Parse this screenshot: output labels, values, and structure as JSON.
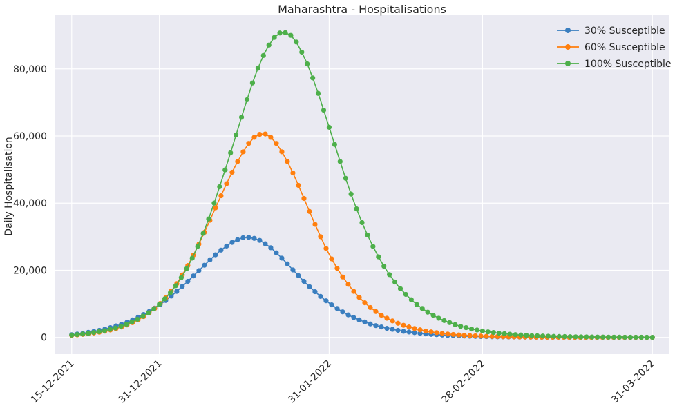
{
  "chart_data": {
    "type": "line",
    "title": "Maharashtra - Hospitalisations",
    "xlabel": "",
    "ylabel": "Daily Hospitalisation",
    "ylim": [
      -5000,
      96000
    ],
    "xlim": [
      "2021-12-12",
      "2022-04-03"
    ],
    "x_ticks": [
      "15-12-2021",
      "31-12-2021",
      "31-01-2022",
      "28-02-2022",
      "31-03-2022"
    ],
    "y_ticks": [
      "0",
      "20,000",
      "40,000",
      "60,000",
      "80,000"
    ],
    "y_tick_values": [
      0,
      20000,
      40000,
      60000,
      80000
    ],
    "grid": true,
    "legend_position": "top-right",
    "style": "seaborn-darkgrid",
    "x_start": "2021-12-15",
    "x_end": "2022-03-31",
    "series": [
      {
        "name": "30% Susceptible",
        "color": "#3a7ebf",
        "values": [
          800,
          1000,
          1200,
          1500,
          1800,
          2100,
          2500,
          2900,
          3400,
          3900,
          4500,
          5200,
          6000,
          6800,
          7700,
          8700,
          9800,
          11000,
          12300,
          13700,
          15200,
          16700,
          18300,
          19900,
          21500,
          23100,
          24600,
          26000,
          27200,
          28300,
          29100,
          29700,
          29800,
          29500,
          28900,
          27900,
          26700,
          25200,
          23600,
          21900,
          20100,
          18400,
          16700,
          15100,
          13600,
          12200,
          10900,
          9700,
          8600,
          7600,
          6700,
          5900,
          5200,
          4600,
          4000,
          3500,
          3100,
          2700,
          2400,
          2100,
          1800,
          1600,
          1400,
          1200,
          1050,
          900,
          800,
          700,
          600,
          520,
          450,
          390,
          340,
          300,
          260,
          230,
          200,
          170,
          150,
          130,
          115,
          100,
          90,
          80,
          70,
          60,
          55,
          50,
          45,
          40,
          35,
          32,
          30,
          28,
          26,
          24,
          22,
          20,
          18,
          16,
          15,
          14,
          13,
          12,
          11,
          10
        ]
      },
      {
        "name": "60% Susceptible",
        "color": "#ff7f0e",
        "values": [
          600,
          750,
          900,
          1100,
          1300,
          1550,
          1850,
          2200,
          2600,
          3100,
          3700,
          4400,
          5200,
          6200,
          7300,
          8600,
          10100,
          11800,
          13800,
          16000,
          18600,
          21400,
          24500,
          27800,
          31300,
          34900,
          38600,
          42200,
          45800,
          49200,
          52400,
          55300,
          57800,
          59600,
          60500,
          60600,
          59600,
          57800,
          55300,
          52400,
          49000,
          45300,
          41400,
          37500,
          33700,
          30000,
          26500,
          23400,
          20600,
          18000,
          15800,
          13700,
          11900,
          10300,
          8900,
          7700,
          6600,
          5700,
          4900,
          4200,
          3600,
          3100,
          2650,
          2250,
          1900,
          1650,
          1400,
          1200,
          1000,
          870,
          740,
          630,
          540,
          460,
          400,
          340,
          290,
          250,
          210,
          180,
          155,
          130,
          110,
          95,
          80,
          70,
          60,
          50,
          44,
          38,
          33,
          28,
          24,
          21,
          18,
          16,
          14,
          12,
          10,
          9,
          8,
          7,
          6,
          5,
          5,
          4
        ]
      },
      {
        "name": "100% Susceptible",
        "color": "#4daf4a",
        "values": [
          700,
          850,
          1000,
          1200,
          1450,
          1700,
          2000,
          2400,
          2800,
          3300,
          3900,
          4600,
          5400,
          6300,
          7300,
          8500,
          9900,
          11500,
          13300,
          15400,
          17800,
          20500,
          23600,
          27100,
          31000,
          35300,
          40000,
          44900,
          49900,
          55000,
          60300,
          65600,
          70800,
          75800,
          80200,
          84000,
          87100,
          89400,
          90700,
          90800,
          90000,
          88000,
          85000,
          81500,
          77300,
          72700,
          67700,
          62600,
          57500,
          52400,
          47400,
          42700,
          38300,
          34200,
          30500,
          27100,
          24000,
          21200,
          18700,
          16500,
          14500,
          12800,
          11200,
          9800,
          8600,
          7500,
          6600,
          5700,
          5000,
          4400,
          3800,
          3300,
          2900,
          2500,
          2200,
          1900,
          1650,
          1450,
          1250,
          1100,
          950,
          820,
          710,
          620,
          540,
          470,
          410,
          360,
          310,
          270,
          240,
          210,
          180,
          160,
          140,
          120,
          105,
          92,
          80,
          70,
          62,
          55,
          48,
          42,
          37,
          33,
          29
        ]
      }
    ]
  }
}
